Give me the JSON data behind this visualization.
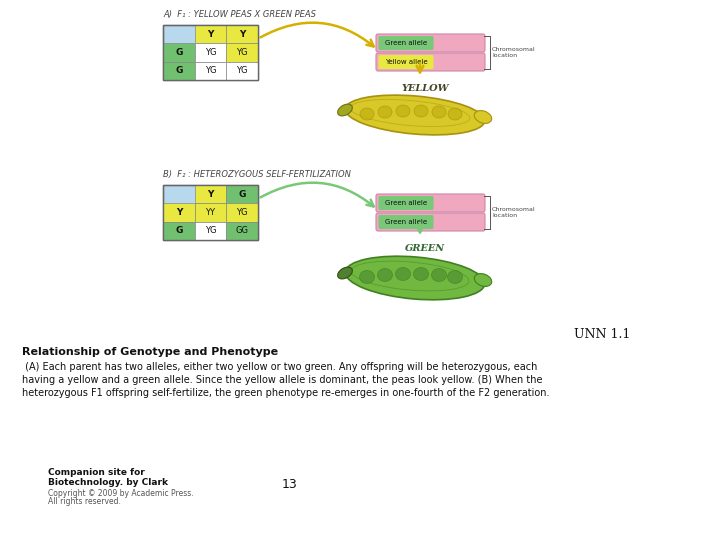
{
  "title_unn": "UNN 1.1",
  "heading": "Relationship of Genotype and Phenotype",
  "body_text": " (A) Each parent has two alleles, either two yellow or two green. Any offspring will be heterozygous, each\nhaving a yellow and a green allele. Since the yellow allele is dominant, the peas look yellow. (B) When the\nheterozygous F1 offspring self-fertilize, the green phenotype re-emerges in one-fourth of the F2 generation.",
  "footer_left_line1": "Companion site for",
  "footer_left_line2": "Biotechnology. by Clark",
  "footer_left_line3": "Copyright © 2009 by Academic Press.",
  "footer_left_line4": "All rights reserved.",
  "footer_center": "13",
  "label_A": "A)  F₁ : YELLOW PEAS X GREEN PEAS",
  "label_B": "B)  F₂ : HETEROZYGOUS SELF-FERTILIZATION",
  "label_yellow": "YELLOW",
  "label_green": "GREEN",
  "chrom_label": "Chromosomal\nlocation",
  "green_allele": "Green allele",
  "yellow_allele": "Yellow allele",
  "bg_color": "#ffffff",
  "grid_bg": "#b8d8ee",
  "cell_yellow": "#e8e840",
  "cell_green": "#70c070",
  "cell_white": "#ffffff",
  "pink_bar": "#f0a8c0",
  "green_bar_label": "#90d890",
  "arrow_color_A": "#d4b000",
  "arrow_color_B": "#78c878",
  "pod_yellow_main": "#d8c828",
  "pod_yellow_edge": "#a89010",
  "pod_yellow_bump": "#c0b010",
  "pod_green_main": "#70b840",
  "pod_green_edge": "#408020",
  "pod_green_bump": "#509030",
  "text_dark": "#222222",
  "text_mid": "#444444",
  "text_light": "#666666"
}
